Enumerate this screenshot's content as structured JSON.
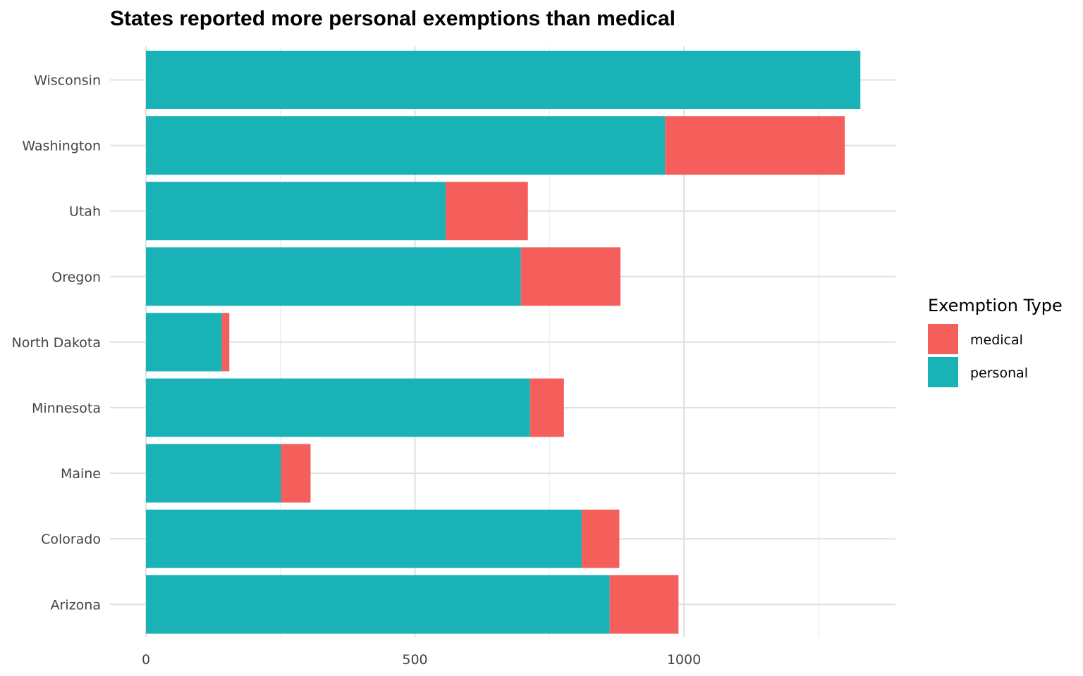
{
  "chart_data": {
    "type": "bar",
    "orientation": "horizontal",
    "stacked": true,
    "title": "States reported more personal exemptions than medical",
    "xlabel": "",
    "ylabel": "",
    "categories": [
      "Wisconsin",
      "Washington",
      "Utah",
      "Oregon",
      "North Dakota",
      "Minnesota",
      "Maine",
      "Colorado",
      "Arizona"
    ],
    "series": [
      {
        "name": "personal",
        "color": "#19B3B7",
        "values": [
          1328,
          965,
          557,
          697,
          141,
          714,
          251,
          810,
          862
        ]
      },
      {
        "name": "medical",
        "color": "#F45F5C",
        "values": [
          0,
          334,
          153,
          185,
          14,
          63,
          55,
          70,
          128
        ]
      }
    ],
    "xlim": [
      0,
      1390
    ],
    "x_ticks": [
      0,
      500,
      1000
    ],
    "x_tick_labels": [
      "0",
      "500",
      "1000"
    ],
    "grid": true,
    "legend": {
      "title": "Exemption Type",
      "placement": "right",
      "items": [
        {
          "label": "medical",
          "color": "#F45F5C"
        },
        {
          "label": "personal",
          "color": "#19B3B7"
        }
      ]
    }
  }
}
